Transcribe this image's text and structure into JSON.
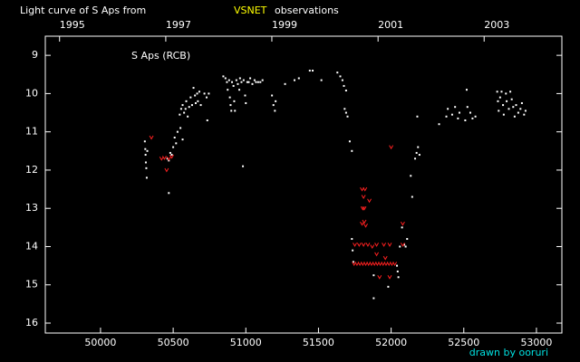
{
  "chart_data": {
    "type": "scatter",
    "title": "Light curve of S Aps from",
    "title_source": "VSNET",
    "title_suffix": "observations",
    "title_source_color": "#ffff00",
    "annotation": "S Aps (RCB)",
    "credit": "drawn by ooruri",
    "credit_color": "#00e0e0",
    "xlim": [
      49620,
      53175
    ],
    "xticks": [
      50000,
      50500,
      51000,
      51500,
      52000,
      52500,
      53000
    ],
    "x2ticks": [
      {
        "value": 49718,
        "label": "1995"
      },
      {
        "value": 50449,
        "label": "1997"
      },
      {
        "value": 51179,
        "label": "1999"
      },
      {
        "value": 51910,
        "label": "2001"
      },
      {
        "value": 52640,
        "label": "2003"
      }
    ],
    "ylim": [
      16.26,
      8.5
    ],
    "yticks": [
      9,
      10,
      11,
      12,
      13,
      14,
      15,
      16
    ],
    "series": [
      {
        "color": "#ffffff",
        "marker": "dot",
        "x": [
          50305,
          50308,
          50310,
          50312,
          50315,
          50318,
          50322,
          50470,
          50460,
          50470,
          50480,
          50490,
          50500,
          50510,
          50520,
          50530,
          50550,
          50565,
          50545,
          50555,
          50565,
          50575,
          50585,
          50590,
          50600,
          50610,
          50620,
          50630,
          50640,
          50650,
          50655,
          50665,
          50670,
          50680,
          50690,
          50715,
          50730,
          50735,
          50745,
          50845,
          50860,
          50870,
          50875,
          50885,
          50890,
          50895,
          50900,
          50905,
          50915,
          50920,
          50925,
          50935,
          50945,
          50955,
          50960,
          50970,
          50980,
          50985,
          50995,
          51000,
          51010,
          51020,
          51030,
          51045,
          51060,
          51070,
          51085,
          51100,
          51115,
          51180,
          51190,
          51200,
          51205,
          51270,
          51335,
          51365,
          51440,
          51460,
          51520,
          51630,
          51650,
          51665,
          51675,
          51690,
          51680,
          51690,
          51700,
          51715,
          51730,
          51730,
          51735,
          51740,
          51880,
          51880,
          51980,
          52040,
          52045,
          52050,
          52060,
          52075,
          52090,
          52100,
          52110,
          52135,
          52145,
          52165,
          52175,
          52185,
          52195,
          52180,
          52330,
          52380,
          52390,
          52420,
          52440,
          52460,
          52470,
          52510,
          52520,
          52525,
          52545,
          52560,
          52580,
          52730,
          52735,
          52740,
          52750,
          52760,
          52770,
          52775,
          52790,
          52795,
          52810,
          52820,
          52830,
          52840,
          52850,
          52860,
          52875,
          52890,
          52900,
          52915,
          52925
        ],
        "values": [
          11.25,
          11.45,
          11.6,
          11.8,
          11.95,
          12.2,
          11.5,
          12.6,
          11.7,
          11.75,
          11.55,
          11.6,
          11.4,
          11.15,
          11.3,
          11.0,
          10.9,
          11.2,
          10.55,
          10.4,
          10.3,
          10.5,
          10.4,
          10.2,
          10.6,
          10.35,
          10.1,
          10.3,
          9.85,
          10.05,
          10.25,
          10.0,
          10.2,
          9.95,
          10.3,
          10.0,
          10.1,
          10.7,
          10.0,
          9.55,
          9.6,
          9.7,
          9.9,
          9.65,
          10.1,
          10.3,
          10.45,
          9.7,
          9.8,
          10.2,
          10.45,
          9.65,
          9.75,
          9.9,
          9.6,
          9.7,
          11.9,
          9.65,
          10.05,
          10.25,
          9.7,
          9.7,
          9.6,
          9.75,
          9.65,
          9.7,
          9.7,
          9.7,
          9.65,
          10.05,
          10.3,
          10.45,
          10.2,
          9.75,
          9.65,
          9.6,
          9.4,
          9.4,
          9.65,
          9.45,
          9.55,
          9.65,
          9.8,
          9.92,
          10.4,
          10.5,
          10.6,
          11.25,
          11.5,
          13.8,
          14.1,
          14.4,
          14.75,
          15.35,
          15.05,
          14.5,
          14.65,
          14.8,
          14.0,
          13.5,
          13.95,
          14.0,
          13.8,
          12.15,
          12.7,
          11.7,
          11.55,
          11.4,
          11.6,
          10.6,
          10.8,
          10.6,
          10.4,
          10.55,
          10.35,
          10.65,
          10.5,
          10.7,
          9.9,
          10.35,
          10.5,
          10.65,
          10.6,
          9.95,
          10.2,
          10.45,
          10.1,
          9.95,
          10.3,
          10.55,
          10.0,
          10.2,
          10.4,
          9.95,
          10.15,
          10.35,
          10.6,
          10.3,
          10.5,
          10.4,
          10.25,
          10.55,
          10.45
        ]
      },
      {
        "color": "#ff2020",
        "marker": "v",
        "x": [
          50350,
          50420,
          50440,
          50455,
          50470,
          50490,
          51800,
          51810,
          51820,
          51805,
          51815,
          51800,
          51815,
          51825,
          51750,
          51780,
          51810,
          51840,
          51870,
          51900,
          51950,
          51990,
          52080,
          51745,
          51765,
          51785,
          51805,
          51825,
          51845,
          51865,
          51885,
          51905,
          51925,
          51945,
          51965,
          51985,
          52005,
          52025,
          51900,
          51960,
          52000,
          52080,
          51850,
          51920,
          51990
        ],
        "values": [
          11.15,
          11.7,
          11.68,
          12.0,
          11.7,
          11.65,
          12.5,
          12.7,
          12.5,
          13.0,
          13.0,
          13.4,
          13.35,
          13.45,
          13.95,
          13.95,
          13.95,
          13.95,
          14.0,
          13.95,
          13.95,
          13.95,
          13.95,
          14.45,
          14.45,
          14.45,
          14.45,
          14.45,
          14.45,
          14.45,
          14.45,
          14.45,
          14.45,
          14.45,
          14.45,
          14.45,
          14.45,
          14.45,
          14.2,
          14.3,
          11.4,
          13.4,
          12.8,
          14.8,
          14.8
        ]
      }
    ]
  }
}
